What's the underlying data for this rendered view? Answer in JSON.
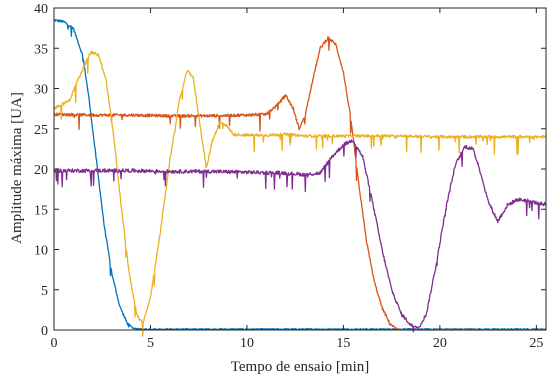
{
  "chart_data": {
    "type": "line",
    "xlabel": "Tempo de ensaio [min]",
    "ylabel": "Amplitude máxima [UA]",
    "xlim": [
      0,
      25.5
    ],
    "ylim": [
      0,
      40
    ],
    "xticks": [
      0,
      5,
      10,
      15,
      20,
      25
    ],
    "yticks": [
      0,
      5,
      10,
      15,
      20,
      25,
      30,
      35,
      40
    ],
    "grid": false,
    "series": [
      {
        "color": "#0072BD",
        "noise": 0.3,
        "x": [
          0,
          0.5,
          1,
          1.5,
          1.8,
          2.2,
          2.6,
          3,
          3.4,
          3.8,
          4.1,
          4.5,
          6,
          8,
          10,
          12,
          14,
          16,
          18,
          20,
          22,
          24,
          25.5
        ],
        "y": [
          38.5,
          38.3,
          37.5,
          34,
          29,
          21,
          13,
          7,
          3,
          0.8,
          0.2,
          0.1,
          0.1,
          0.1,
          0.1,
          0.1,
          0.1,
          0.1,
          0.1,
          0.1,
          0.1,
          0.1,
          0.1
        ]
      },
      {
        "color": "#D95319",
        "noise": 0.35,
        "x": [
          0,
          2,
          4,
          6,
          8,
          10,
          11,
          11.6,
          12,
          12.4,
          12.7,
          13,
          13.4,
          13.8,
          14.2,
          14.6,
          15,
          15.4,
          15.8,
          16.2,
          16.6,
          17,
          17.4,
          17.8,
          18,
          20,
          25.5
        ],
        "y": [
          26.8,
          26.7,
          26.7,
          26.6,
          26.6,
          26.7,
          26.8,
          28,
          29.2,
          27.5,
          25,
          26.5,
          31,
          35,
          36.3,
          35.5,
          32,
          26,
          18,
          11,
          6,
          2.8,
          0.8,
          0.1,
          0,
          0,
          0
        ]
      },
      {
        "color": "#EDB120",
        "noise": 0.35,
        "x": [
          0,
          0.8,
          1.4,
          1.9,
          2.3,
          2.7,
          3.1,
          3.5,
          3.9,
          4.3,
          4.6,
          5,
          5.5,
          6,
          6.5,
          6.9,
          7.2,
          7.6,
          7.9,
          8.2,
          8.6,
          8.9,
          9.3,
          10,
          11,
          12,
          12.5,
          13,
          14,
          16,
          18,
          20,
          22,
          24,
          25.5
        ],
        "y": [
          27.5,
          28.5,
          32,
          34.5,
          34.2,
          31,
          24,
          15,
          7,
          1.8,
          0.8,
          4,
          12,
          21,
          28.5,
          32.2,
          31.5,
          25,
          20,
          23.5,
          25.8,
          25.5,
          24.3,
          24.2,
          24.2,
          24.3,
          24.2,
          24.1,
          24.1,
          24.1,
          24.1,
          24,
          24,
          24,
          24
        ]
      },
      {
        "color": "#7E2F8E",
        "noise": 0.45,
        "x": [
          0,
          2,
          4,
          6,
          8,
          10,
          12,
          13,
          13.8,
          14.4,
          15,
          15.5,
          16,
          16.5,
          17,
          17.5,
          18,
          18.5,
          18.9,
          19.3,
          19.8,
          20.3,
          20.8,
          21.3,
          21.7,
          22,
          22.5,
          23,
          23.5,
          24,
          24.5,
          25,
          25.5
        ],
        "y": [
          19.8,
          19.8,
          19.8,
          19.7,
          19.7,
          19.6,
          19.5,
          19.3,
          19.5,
          21.5,
          23,
          23.6,
          21.5,
          16,
          10,
          5,
          2,
          0.6,
          0.3,
          2,
          8,
          15,
          20.5,
          22.8,
          22.5,
          20.5,
          16,
          13.5,
          15.5,
          16.2,
          16.1,
          15.8,
          15.6
        ]
      }
    ]
  }
}
